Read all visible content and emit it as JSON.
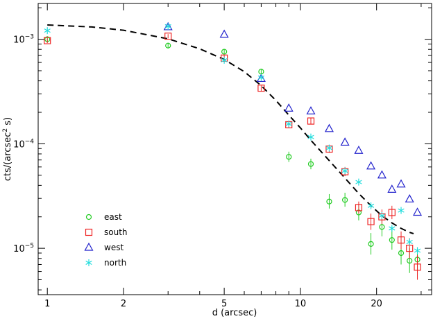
{
  "chart_data": {
    "type": "scatter",
    "xlabel": "d (arcsec)",
    "ylabel_parts": [
      "cts/(arcsec",
      "2",
      " s)"
    ],
    "xscale": "log",
    "yscale": "log",
    "xlim": [
      0.92,
      33
    ],
    "ylim": [
      3.6e-06,
      0.0022
    ],
    "grid": false,
    "legend_position": "bottom-left",
    "xticks": {
      "major": [
        {
          "value": 1,
          "label": "1"
        },
        {
          "value": 2,
          "label": "2"
        },
        {
          "value": 5,
          "label": "5"
        },
        {
          "value": 10,
          "label": "10"
        },
        {
          "value": 20,
          "label": "20"
        }
      ],
      "minor": [
        3,
        4,
        6,
        7,
        8,
        9,
        30
      ]
    },
    "yticks": {
      "major": [
        {
          "value": 1e-05,
          "base": "10",
          "exp": "−5"
        },
        {
          "value": 0.0001,
          "base": "10",
          "exp": "−4"
        },
        {
          "value": 0.001,
          "base": "10",
          "exp": "−3"
        }
      ],
      "minor": [
        4e-06,
        5e-06,
        6e-06,
        7e-06,
        8e-06,
        9e-06,
        2e-05,
        3e-05,
        4e-05,
        5e-05,
        6e-05,
        7e-05,
        8e-05,
        9e-05,
        0.0002,
        0.0003,
        0.0004,
        0.0005,
        0.0006,
        0.0007,
        0.0008,
        0.0009,
        0.002
      ]
    },
    "model_curve": {
      "style": "dashed",
      "color": "#000000",
      "x": [
        1,
        1.5,
        2,
        3,
        4,
        5,
        6,
        7,
        8,
        9,
        10,
        11,
        13,
        15,
        17,
        19,
        21,
        23,
        25,
        27,
        28
      ],
      "y": [
        0.00137,
        0.00131,
        0.00122,
        0.00101,
        0.00081,
        0.00064,
        0.00049,
        0.00036,
        0.00026,
        0.000188,
        0.000142,
        0.000108,
        6.9e-05,
        4.7e-05,
        3.35e-05,
        2.55e-05,
        2.05e-05,
        1.75e-05,
        1.55e-05,
        1.42e-05,
        1.38e-05
      ]
    },
    "series": [
      {
        "name": "east",
        "marker": "circle",
        "color": "#22cc22",
        "points": [
          {
            "x": 1,
            "y": 0.001,
            "lo": 0.00093,
            "hi": 0.00107
          },
          {
            "x": 3,
            "y": 0.00087,
            "lo": 0.00083,
            "hi": 0.00091
          },
          {
            "x": 5,
            "y": 0.00076,
            "lo": 0.00072,
            "hi": 0.0008
          },
          {
            "x": 7,
            "y": 0.00049,
            "lo": 0.00046,
            "hi": 0.00052
          },
          {
            "x": 9,
            "y": 7.5e-05,
            "lo": 6.7e-05,
            "hi": 8.4e-05
          },
          {
            "x": 11,
            "y": 6.4e-05,
            "lo": 5.7e-05,
            "hi": 7.2e-05
          },
          {
            "x": 13,
            "y": 2.8e-05,
            "lo": 2.4e-05,
            "hi": 3.3e-05
          },
          {
            "x": 15,
            "y": 2.9e-05,
            "lo": 2.5e-05,
            "hi": 3.4e-05
          },
          {
            "x": 17,
            "y": 2.2e-05,
            "lo": 1.85e-05,
            "hi": 2.6e-05
          },
          {
            "x": 19,
            "y": 1.1e-05,
            "lo": 8.7e-06,
            "hi": 1.4e-05
          },
          {
            "x": 21,
            "y": 1.6e-05,
            "lo": 1.3e-05,
            "hi": 1.95e-05
          },
          {
            "x": 23,
            "y": 1.2e-05,
            "lo": 9.7e-06,
            "hi": 1.5e-05
          },
          {
            "x": 25,
            "y": 9e-06,
            "lo": 7e-06,
            "hi": 1.15e-05
          },
          {
            "x": 27,
            "y": 7.6e-06,
            "lo": 5.8e-06,
            "hi": 1e-05
          },
          {
            "x": 29,
            "y": 7.8e-06,
            "lo": 6e-06,
            "hi": 1.02e-05
          }
        ]
      },
      {
        "name": "south",
        "marker": "square",
        "color": "#ee2222",
        "points": [
          {
            "x": 1,
            "y": 0.00097,
            "lo": 0.00092,
            "hi": 0.00102
          },
          {
            "x": 3,
            "y": 0.00107,
            "lo": 0.00102,
            "hi": 0.00112
          },
          {
            "x": 5,
            "y": 0.00066,
            "lo": 0.00062,
            "hi": 0.0007
          },
          {
            "x": 7,
            "y": 0.00034,
            "lo": 0.00032,
            "hi": 0.00036
          },
          {
            "x": 9,
            "y": 0.000152,
            "lo": 0.000142,
            "hi": 0.000163
          },
          {
            "x": 11,
            "y": 0.000165,
            "lo": 0.000154,
            "hi": 0.000177
          },
          {
            "x": 13,
            "y": 8.9e-05,
            "lo": 8.2e-05,
            "hi": 9.7e-05
          },
          {
            "x": 15,
            "y": 5.4e-05,
            "lo": 4.9e-05,
            "hi": 6e-05
          },
          {
            "x": 17,
            "y": 2.45e-05,
            "lo": 2.15e-05,
            "hi": 2.8e-05
          },
          {
            "x": 19,
            "y": 1.8e-05,
            "lo": 1.5e-05,
            "hi": 2.15e-05
          },
          {
            "x": 21,
            "y": 2e-05,
            "lo": 1.7e-05,
            "hi": 2.35e-05
          },
          {
            "x": 23,
            "y": 2.2e-05,
            "lo": 1.9e-05,
            "hi": 2.55e-05
          },
          {
            "x": 25,
            "y": 1.2e-05,
            "lo": 9.8e-06,
            "hi": 1.45e-05
          },
          {
            "x": 27,
            "y": 1e-05,
            "lo": 8e-06,
            "hi": 1.25e-05
          },
          {
            "x": 29,
            "y": 6.6e-06,
            "lo": 5e-06,
            "hi": 8.6e-06
          }
        ]
      },
      {
        "name": "west",
        "marker": "triangle",
        "color": "#2222cc",
        "points": [
          {
            "x": 3,
            "y": 0.00131
          },
          {
            "x": 5,
            "y": 0.00111
          },
          {
            "x": 7,
            "y": 0.00042
          },
          {
            "x": 9,
            "y": 0.000218
          },
          {
            "x": 11,
            "y": 0.000205
          },
          {
            "x": 13,
            "y": 0.000139
          },
          {
            "x": 15,
            "y": 0.000103
          },
          {
            "x": 17,
            "y": 8.6e-05
          },
          {
            "x": 19,
            "y": 6.1e-05
          },
          {
            "x": 21,
            "y": 5e-05
          },
          {
            "x": 23,
            "y": 3.65e-05
          },
          {
            "x": 25,
            "y": 4.1e-05
          },
          {
            "x": 27,
            "y": 2.95e-05
          },
          {
            "x": 29,
            "y": 2.2e-05
          }
        ]
      },
      {
        "name": "north",
        "marker": "asterisk",
        "color": "#22dddd",
        "points": [
          {
            "x": 1,
            "y": 0.00121
          },
          {
            "x": 3,
            "y": 0.00133
          },
          {
            "x": 5,
            "y": 0.00063
          },
          {
            "x": 7,
            "y": 0.00043
          },
          {
            "x": 9,
            "y": 0.000155
          },
          {
            "x": 11,
            "y": 0.000116
          },
          {
            "x": 13,
            "y": 9.1e-05
          },
          {
            "x": 15,
            "y": 5.5e-05
          },
          {
            "x": 17,
            "y": 4.3e-05
          },
          {
            "x": 19,
            "y": 2.55e-05
          },
          {
            "x": 21,
            "y": 2.05e-05
          },
          {
            "x": 23,
            "y": 1.55e-05
          },
          {
            "x": 25,
            "y": 2.3e-05
          },
          {
            "x": 27,
            "y": 1.15e-05
          },
          {
            "x": 29,
            "y": 9.5e-06
          }
        ]
      }
    ]
  }
}
